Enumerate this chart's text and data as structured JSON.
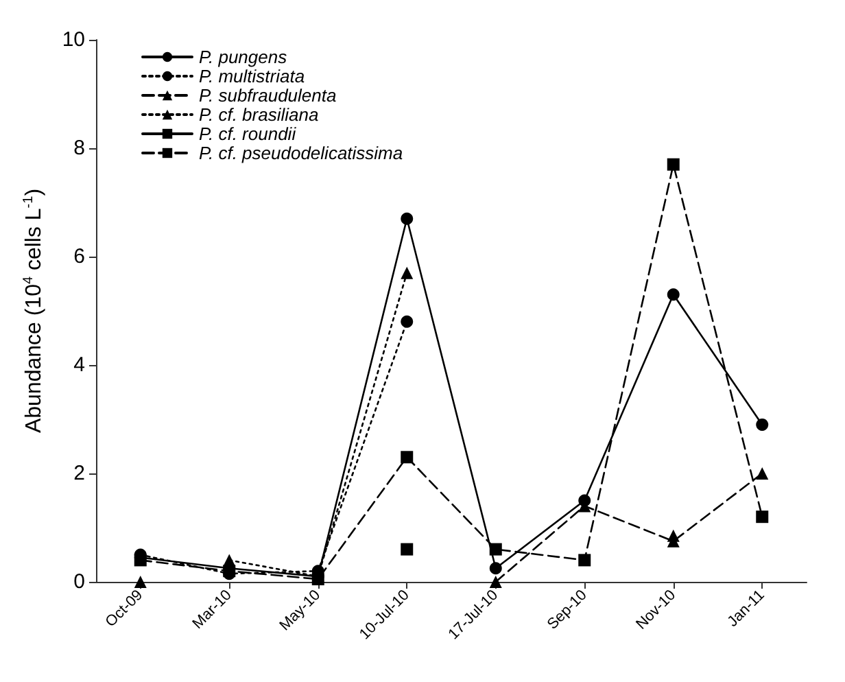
{
  "chart_data": {
    "type": "line",
    "ylabel": "Abundance (10$^{4}$ cells L$^{-1}$)",
    "categories": [
      "Oct-09",
      "Mar-10",
      "May-10",
      "10-Jul-10",
      "17-Jul-10",
      "Sep-10",
      "Nov-10",
      "Jan-11"
    ],
    "ylim": [
      0,
      10
    ],
    "yticks": [
      0,
      2,
      4,
      6,
      8,
      10
    ],
    "grid": false,
    "legend": "top left",
    "series": [
      {
        "name": "P. pungens",
        "color": "#000000",
        "marker": "circle",
        "line_style": "solid",
        "values": [
          0.45,
          0.25,
          0.1,
          6.7,
          0.25,
          1.5,
          5.3,
          2.9
        ]
      },
      {
        "name": "P. multistriata",
        "color": "#000000",
        "marker": "circle",
        "line_style": "dotted",
        "values": [
          0.5,
          0.15,
          0.2,
          4.8,
          null,
          null,
          null,
          null
        ]
      },
      {
        "name": "P. subfraudulenta",
        "color": "#000000",
        "marker": "triangle",
        "line_style": "dashed",
        "values": [
          0,
          null,
          null,
          null,
          0,
          1.4,
          0.75,
          2.0
        ]
      },
      {
        "name": "P. cf. brasiliana",
        "color": "#000000",
        "marker": "triangle",
        "line_style": "dotted",
        "values": [
          null,
          0.4,
          0.1,
          5.7,
          null,
          null,
          0.85,
          null
        ]
      },
      {
        "name": "P. cf. roundii",
        "color": "#000000",
        "marker": "square",
        "line_style": "solid",
        "values": [
          null,
          null,
          null,
          0.6,
          null,
          null,
          null,
          null
        ]
      },
      {
        "name": "P. cf. pseudodelicatissima",
        "color": "#000000",
        "marker": "square",
        "line_style": "dashed",
        "values": [
          0.4,
          0.2,
          0.05,
          2.3,
          0.6,
          0.4,
          7.7,
          1.2
        ]
      }
    ]
  }
}
